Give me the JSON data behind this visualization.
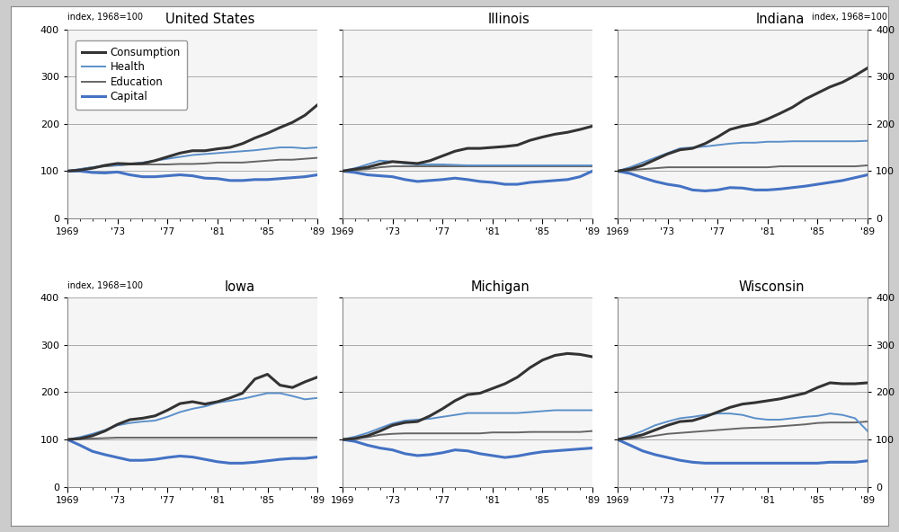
{
  "years": [
    1969,
    1970,
    1971,
    1972,
    1973,
    1974,
    1975,
    1976,
    1977,
    1978,
    1979,
    1980,
    1981,
    1982,
    1983,
    1984,
    1985,
    1986,
    1987,
    1988,
    1989
  ],
  "panels": [
    {
      "title": "United States",
      "show_legend": true,
      "col": 0,
      "row": 0,
      "consumption": [
        100,
        102,
        106,
        112,
        116,
        115,
        116,
        122,
        130,
        138,
        143,
        143,
        147,
        150,
        158,
        170,
        180,
        192,
        203,
        218,
        240
      ],
      "health": [
        100,
        104,
        108,
        112,
        112,
        115,
        118,
        122,
        126,
        130,
        134,
        136,
        138,
        140,
        142,
        144,
        147,
        150,
        150,
        148,
        150
      ],
      "education": [
        100,
        104,
        108,
        110,
        112,
        114,
        114,
        114,
        114,
        115,
        115,
        116,
        118,
        118,
        118,
        120,
        122,
        124,
        124,
        126,
        128
      ],
      "capital": [
        100,
        100,
        97,
        96,
        98,
        92,
        88,
        88,
        90,
        92,
        90,
        85,
        84,
        80,
        80,
        82,
        82,
        84,
        86,
        88,
        92
      ]
    },
    {
      "title": "Illinois",
      "show_legend": false,
      "col": 1,
      "row": 0,
      "consumption": [
        100,
        104,
        108,
        115,
        120,
        118,
        116,
        122,
        132,
        142,
        148,
        148,
        150,
        152,
        155,
        165,
        172,
        178,
        182,
        188,
        195
      ],
      "health": [
        100,
        106,
        114,
        122,
        120,
        116,
        114,
        114,
        114,
        113,
        112,
        112,
        112,
        112,
        112,
        112,
        112,
        112,
        112,
        112,
        112
      ],
      "education": [
        100,
        102,
        104,
        108,
        110,
        110,
        110,
        110,
        110,
        110,
        110,
        110,
        110,
        110,
        110,
        110,
        110,
        110,
        110,
        110,
        110
      ],
      "capital": [
        100,
        97,
        92,
        90,
        88,
        82,
        78,
        80,
        82,
        85,
        82,
        78,
        76,
        72,
        72,
        76,
        78,
        80,
        82,
        88,
        100
      ]
    },
    {
      "title": "Indiana",
      "show_legend": false,
      "col": 2,
      "row": 0,
      "consumption": [
        100,
        104,
        112,
        124,
        136,
        145,
        148,
        158,
        172,
        188,
        195,
        200,
        210,
        222,
        235,
        252,
        265,
        278,
        288,
        302,
        318
      ],
      "health": [
        100,
        108,
        118,
        128,
        138,
        148,
        150,
        152,
        155,
        158,
        160,
        160,
        162,
        162,
        163,
        163,
        163,
        163,
        163,
        163,
        164
      ],
      "education": [
        100,
        102,
        104,
        106,
        108,
        108,
        108,
        108,
        108,
        108,
        108,
        108,
        108,
        110,
        110,
        110,
        110,
        110,
        110,
        110,
        112
      ],
      "capital": [
        100,
        95,
        86,
        78,
        72,
        68,
        60,
        58,
        60,
        65,
        64,
        60,
        60,
        62,
        65,
        68,
        72,
        76,
        80,
        86,
        92
      ]
    },
    {
      "title": "Iowa",
      "show_legend": false,
      "col": 0,
      "row": 1,
      "consumption": [
        100,
        102,
        108,
        118,
        132,
        142,
        145,
        150,
        162,
        176,
        180,
        175,
        180,
        188,
        198,
        228,
        238,
        215,
        210,
        222,
        232
      ],
      "health": [
        100,
        105,
        112,
        120,
        130,
        135,
        138,
        140,
        148,
        158,
        165,
        170,
        178,
        182,
        186,
        192,
        198,
        198,
        192,
        185,
        188
      ],
      "education": [
        100,
        101,
        102,
        103,
        104,
        104,
        104,
        104,
        104,
        104,
        104,
        104,
        104,
        104,
        104,
        104,
        104,
        104,
        104,
        104,
        104
      ],
      "capital": [
        100,
        88,
        75,
        68,
        62,
        56,
        56,
        58,
        62,
        65,
        63,
        58,
        53,
        50,
        50,
        52,
        55,
        58,
        60,
        60,
        63
      ]
    },
    {
      "title": "Michigan",
      "show_legend": false,
      "col": 1,
      "row": 1,
      "consumption": [
        100,
        102,
        108,
        118,
        130,
        136,
        138,
        150,
        165,
        182,
        195,
        198,
        208,
        218,
        232,
        252,
        268,
        278,
        282,
        280,
        275
      ],
      "health": [
        100,
        106,
        114,
        124,
        134,
        140,
        142,
        144,
        148,
        152,
        156,
        156,
        156,
        156,
        156,
        158,
        160,
        162,
        162,
        162,
        162
      ],
      "education": [
        100,
        102,
        105,
        110,
        112,
        113,
        113,
        113,
        113,
        113,
        113,
        113,
        115,
        115,
        115,
        116,
        116,
        116,
        116,
        116,
        118
      ],
      "capital": [
        100,
        96,
        88,
        82,
        78,
        70,
        66,
        68,
        72,
        78,
        76,
        70,
        66,
        62,
        65,
        70,
        74,
        76,
        78,
        80,
        82
      ]
    },
    {
      "title": "Wisconsin",
      "show_legend": false,
      "col": 2,
      "row": 1,
      "consumption": [
        100,
        104,
        110,
        120,
        130,
        138,
        140,
        148,
        158,
        168,
        175,
        178,
        182,
        186,
        192,
        198,
        210,
        220,
        218,
        218,
        220
      ],
      "health": [
        100,
        108,
        118,
        130,
        138,
        145,
        148,
        152,
        155,
        155,
        152,
        145,
        142,
        142,
        145,
        148,
        150,
        155,
        152,
        145,
        118
      ],
      "education": [
        100,
        102,
        104,
        108,
        112,
        114,
        116,
        118,
        120,
        122,
        124,
        125,
        126,
        128,
        130,
        132,
        135,
        136,
        136,
        136,
        138
      ],
      "capital": [
        100,
        88,
        76,
        68,
        62,
        56,
        52,
        50,
        50,
        50,
        50,
        50,
        50,
        50,
        50,
        50,
        50,
        52,
        52,
        52,
        55
      ]
    }
  ],
  "consumption_color": "#333333",
  "health_color": "#5b8fc9",
  "education_color": "#666666",
  "capital_color": "#4472c4",
  "consumption_lw": 2.2,
  "health_lw": 1.4,
  "education_lw": 1.4,
  "capital_lw": 2.2,
  "ylim": [
    0,
    400
  ],
  "yticks": [
    0,
    100,
    200,
    300,
    400
  ],
  "xtick_positions": [
    1969,
    1973,
    1977,
    1981,
    1985,
    1989
  ],
  "xtick_labels": [
    "1969",
    "'73",
    "'77",
    "'81",
    "'85",
    "'89"
  ],
  "ylabel_label": "index, 1968=100",
  "panel_bg": "#f5f5f5",
  "fig_bg": "#ffffff",
  "outer_bg": "#cccccc",
  "grid_color": "#aaaaaa",
  "grid_lw": 0.7
}
